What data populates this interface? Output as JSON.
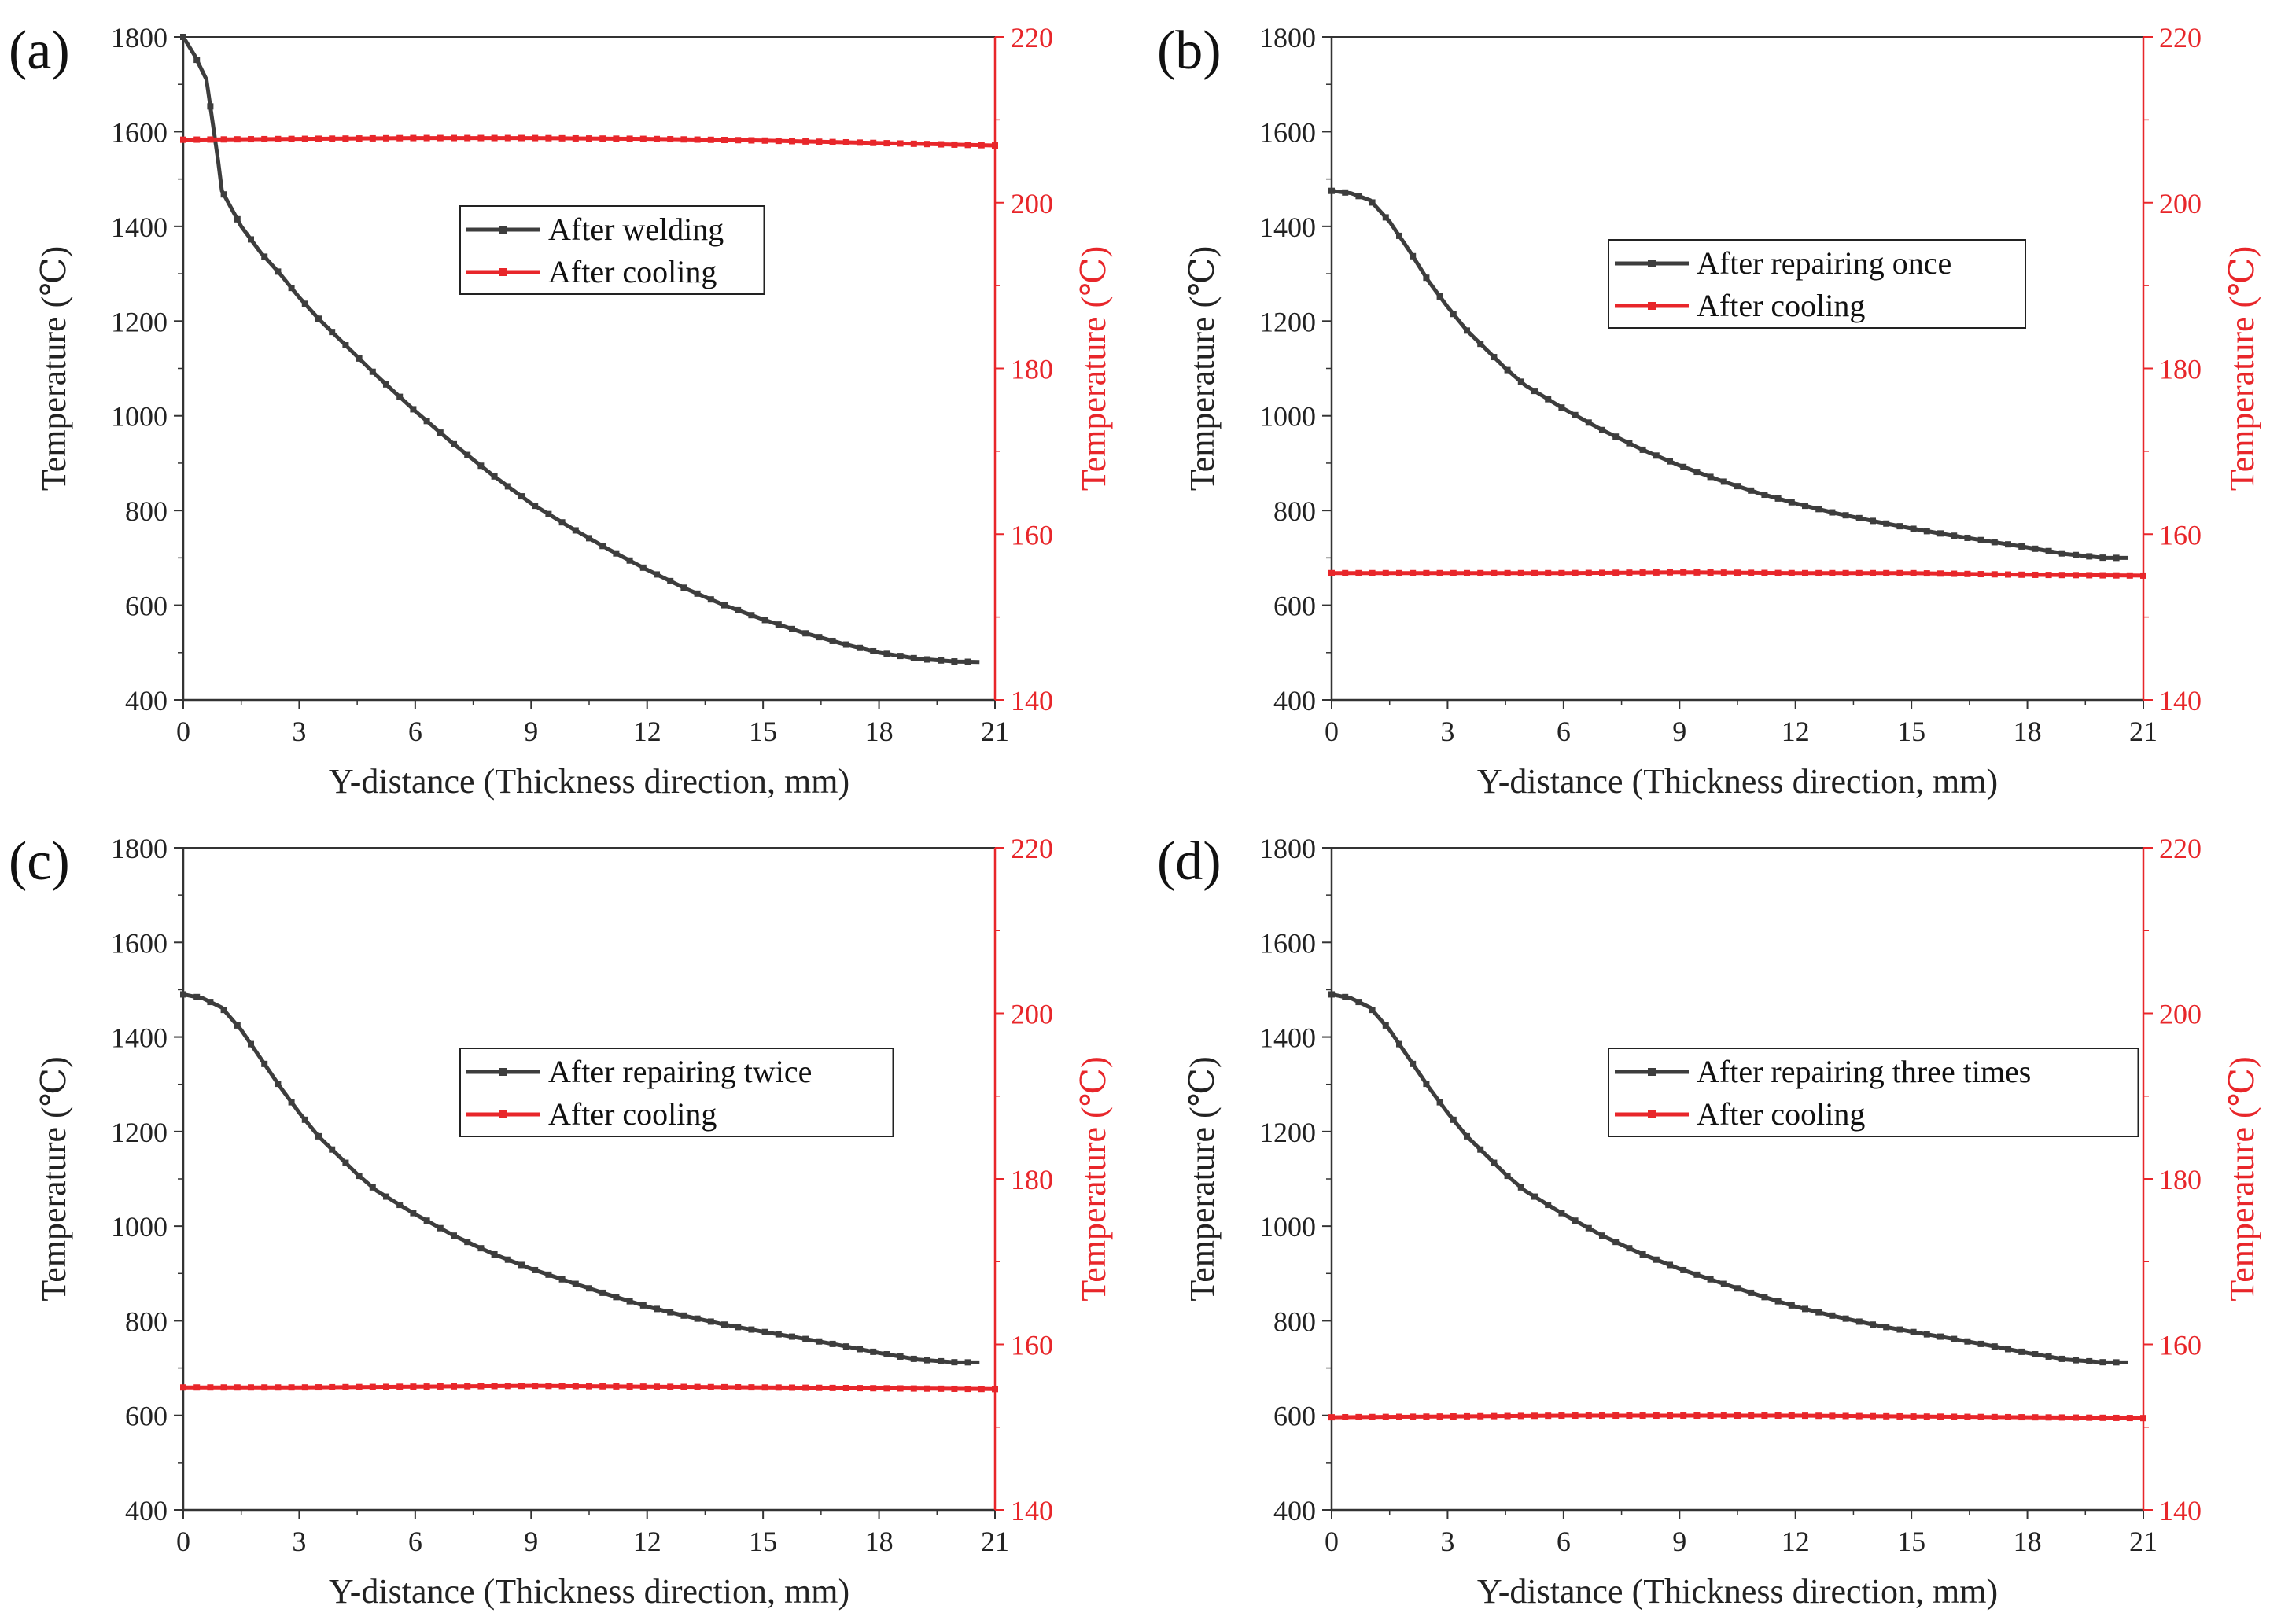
{
  "chart_data": [
    {
      "panel_label": "(a)",
      "type": "line",
      "xlabel": "Y-distance (Thickness direction, mm)",
      "ylabel_left": "Temperature (℃)",
      "ylabel_right": "Temperature (℃)",
      "xlim": [
        0,
        21
      ],
      "ylim_left": [
        400,
        1800
      ],
      "ylim_right": [
        140,
        220
      ],
      "xticks": [
        0,
        3,
        6,
        9,
        12,
        15,
        18,
        21
      ],
      "yticks_left": [
        400,
        600,
        800,
        1000,
        1200,
        1400,
        1600,
        1800
      ],
      "yticks_right": [
        140,
        160,
        180,
        200,
        220
      ],
      "series": [
        {
          "name": "After welding",
          "axis": "left",
          "color": "#3d3d3d",
          "x": [
            0,
            0.3,
            0.6,
            0.9,
            1.0,
            1.5,
            2,
            2.5,
            3,
            3.5,
            4,
            4.5,
            5,
            6,
            7,
            8,
            9,
            10,
            11,
            12,
            13,
            14,
            15,
            16,
            17,
            18,
            19,
            20,
            20.6
          ],
          "y": [
            1800,
            1760,
            1710,
            1540,
            1475,
            1400,
            1345,
            1300,
            1250,
            1205,
            1165,
            1125,
            1085,
            1010,
            940,
            875,
            815,
            765,
            718,
            675,
            635,
            600,
            570,
            543,
            520,
            500,
            487,
            481,
            480
          ]
        },
        {
          "name": "After cooling",
          "axis": "right",
          "color": "#e8262a",
          "x": [
            0,
            3,
            6,
            9,
            12,
            15,
            18,
            21
          ],
          "y": [
            207.6,
            207.7,
            207.8,
            207.8,
            207.7,
            207.5,
            207.2,
            206.9
          ]
        }
      ]
    },
    {
      "panel_label": "(b)",
      "type": "line",
      "xlabel": "Y-distance (Thickness direction, mm)",
      "ylabel_left": "Temperature (℃)",
      "ylabel_right": "Temperature (℃)",
      "xlim": [
        0,
        21
      ],
      "ylim_left": [
        400,
        1800
      ],
      "ylim_right": [
        140,
        220
      ],
      "xticks": [
        0,
        3,
        6,
        9,
        12,
        15,
        18,
        21
      ],
      "yticks_left": [
        400,
        600,
        800,
        1000,
        1200,
        1400,
        1600,
        1800
      ],
      "yticks_right": [
        140,
        160,
        180,
        200,
        220
      ],
      "series": [
        {
          "name": "After repairing once",
          "axis": "left",
          "color": "#3d3d3d",
          "x": [
            0,
            0.5,
            1,
            1.5,
            2,
            2.5,
            3,
            3.5,
            4,
            4.5,
            5,
            6,
            7,
            8,
            9,
            10,
            11,
            12,
            13,
            14,
            15,
            16,
            17,
            18,
            19,
            20,
            20.6
          ],
          "y": [
            1475,
            1470,
            1455,
            1410,
            1350,
            1285,
            1230,
            1180,
            1140,
            1100,
            1065,
            1015,
            970,
            930,
            895,
            865,
            838,
            815,
            795,
            778,
            762,
            748,
            735,
            722,
            708,
            700,
            700
          ]
        },
        {
          "name": "After cooling",
          "axis": "right",
          "color": "#e8262a",
          "x": [
            0,
            3,
            6,
            9,
            12,
            15,
            18,
            21
          ],
          "y": [
            155.3,
            155.3,
            155.3,
            155.4,
            155.3,
            155.3,
            155.1,
            155.0
          ]
        }
      ]
    },
    {
      "panel_label": "(c)",
      "type": "line",
      "xlabel": "Y-distance (Thickness direction, mm)",
      "ylabel_left": "Temperature (℃)",
      "ylabel_right": "Temperature (℃)",
      "xlim": [
        0,
        21
      ],
      "ylim_left": [
        400,
        1800
      ],
      "ylim_right": [
        140,
        220
      ],
      "xticks": [
        0,
        3,
        6,
        9,
        12,
        15,
        18,
        21
      ],
      "yticks_left": [
        400,
        600,
        800,
        1000,
        1200,
        1400,
        1600,
        1800
      ],
      "yticks_right": [
        140,
        160,
        180,
        200,
        220
      ],
      "series": [
        {
          "name": "After repairing twice",
          "axis": "left",
          "color": "#3d3d3d",
          "x": [
            0,
            0.5,
            1,
            1.5,
            2,
            2.5,
            3,
            3.5,
            4,
            4.5,
            5,
            6,
            7,
            8,
            9,
            10,
            11,
            12,
            13,
            14,
            15,
            16,
            17,
            18,
            19,
            20,
            20.6
          ],
          "y": [
            1490,
            1482,
            1462,
            1415,
            1355,
            1295,
            1240,
            1190,
            1150,
            1110,
            1075,
            1025,
            980,
            942,
            910,
            882,
            855,
            830,
            810,
            792,
            777,
            763,
            748,
            732,
            718,
            712,
            712
          ]
        },
        {
          "name": "After cooling",
          "axis": "right",
          "color": "#e8262a",
          "x": [
            0,
            3,
            6,
            9,
            12,
            15,
            18,
            21
          ],
          "y": [
            154.8,
            154.8,
            154.9,
            155.0,
            154.9,
            154.8,
            154.7,
            154.6
          ]
        }
      ]
    },
    {
      "panel_label": "(d)",
      "type": "line",
      "xlabel": "Y-distance (Thickness direction, mm)",
      "ylabel_left": "Temperature (℃)",
      "ylabel_right": "Temperature (℃)",
      "xlim": [
        0,
        21
      ],
      "ylim_left": [
        400,
        1800
      ],
      "ylim_right": [
        140,
        220
      ],
      "xticks": [
        0,
        3,
        6,
        9,
        12,
        15,
        18,
        21
      ],
      "yticks_left": [
        400,
        600,
        800,
        1000,
        1200,
        1400,
        1600,
        1800
      ],
      "yticks_right": [
        140,
        160,
        180,
        200,
        220
      ],
      "series": [
        {
          "name": "After repairing three times",
          "axis": "left",
          "color": "#3d3d3d",
          "x": [
            0,
            0.5,
            1,
            1.5,
            2,
            2.5,
            3,
            3.5,
            4,
            4.5,
            5,
            6,
            7,
            8,
            9,
            10,
            11,
            12,
            13,
            14,
            15,
            16,
            17,
            18,
            19,
            20,
            20.6
          ],
          "y": [
            1490,
            1482,
            1462,
            1415,
            1355,
            1295,
            1240,
            1190,
            1150,
            1110,
            1075,
            1025,
            980,
            942,
            910,
            882,
            855,
            830,
            810,
            792,
            777,
            763,
            748,
            732,
            718,
            712,
            712
          ]
        },
        {
          "name": "After cooling",
          "axis": "right",
          "color": "#e8262a",
          "x": [
            0,
            3,
            6,
            9,
            12,
            15,
            18,
            21
          ],
          "y": [
            151.2,
            151.3,
            151.4,
            151.4,
            151.4,
            151.3,
            151.2,
            151.1
          ]
        }
      ]
    }
  ]
}
